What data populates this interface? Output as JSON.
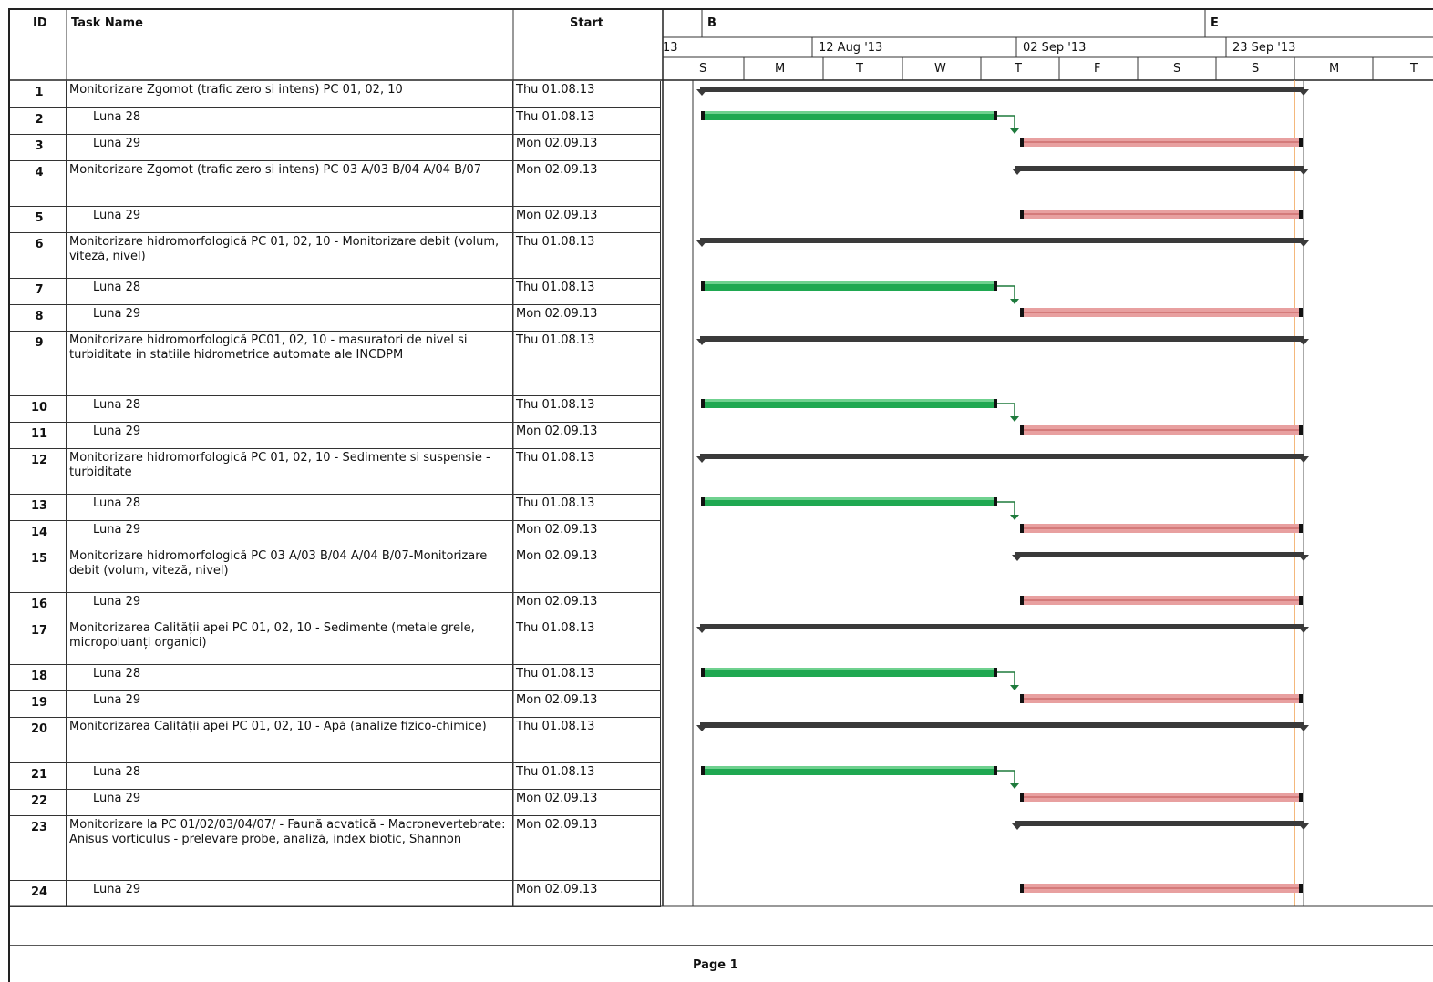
{
  "columns": {
    "id": "ID",
    "name": "Task Name",
    "start": "Start"
  },
  "timescale": {
    "top_markers": [
      "B",
      "E"
    ],
    "mid_labels": [
      "13",
      "12 Aug '13",
      "02 Sep '13",
      "23 Sep '13"
    ],
    "day_labels": [
      "S",
      "M",
      "T",
      "W",
      "T",
      "F",
      "S",
      "S",
      "M",
      "T"
    ]
  },
  "tasks": [
    {
      "id": "1",
      "name": "Monitorizare Zgomot (trafic zero si intens) PC 01, 02, 10",
      "start": "Thu 01.08.13",
      "kind": "summary",
      "lines": 1
    },
    {
      "id": "2",
      "name": "Luna 28",
      "start": "Thu 01.08.13",
      "kind": "green",
      "lines": 1
    },
    {
      "id": "3",
      "name": "Luna 29",
      "start": "Mon 02.09.13",
      "kind": "red",
      "lines": 1
    },
    {
      "id": "4",
      "name": "Monitorizare Zgomot (trafic zero si intens) PC 03 A/03 B/04 A/04 B/07",
      "start": "Mon 02.09.13",
      "kind": "summary2",
      "lines": 2
    },
    {
      "id": "5",
      "name": "Luna 29",
      "start": "Mon 02.09.13",
      "kind": "red",
      "lines": 1
    },
    {
      "id": "6",
      "name": "Monitorizare hidromorfologică PC 01, 02, 10 - Monitorizare debit (volum, viteză, nivel)",
      "start": "Thu 01.08.13",
      "kind": "summary",
      "lines": 2
    },
    {
      "id": "7",
      "name": "Luna 28",
      "start": "Thu 01.08.13",
      "kind": "green",
      "lines": 1
    },
    {
      "id": "8",
      "name": "Luna 29",
      "start": "Mon 02.09.13",
      "kind": "red",
      "lines": 1
    },
    {
      "id": "9",
      "name": "Monitorizare hidromorfologică PC01, 02, 10 - masuratori de nivel si turbiditate in statiile hidrometrice automate ale INCDPM",
      "start": "Thu 01.08.13",
      "kind": "summary",
      "lines": 3
    },
    {
      "id": "10",
      "name": "Luna 28",
      "start": "Thu 01.08.13",
      "kind": "green",
      "lines": 1
    },
    {
      "id": "11",
      "name": "Luna 29",
      "start": "Mon 02.09.13",
      "kind": "red",
      "lines": 1
    },
    {
      "id": "12",
      "name": "Monitorizare hidromorfologică PC 01, 02, 10 - Sedimente si suspensie - turbiditate",
      "start": "Thu 01.08.13",
      "kind": "summary",
      "lines": 2
    },
    {
      "id": "13",
      "name": "Luna 28",
      "start": "Thu 01.08.13",
      "kind": "green",
      "lines": 1
    },
    {
      "id": "14",
      "name": "Luna 29",
      "start": "Mon 02.09.13",
      "kind": "red",
      "lines": 1
    },
    {
      "id": "15",
      "name": "Monitorizare hidromorfologică PC 03 A/03 B/04 A/04 B/07-Monitorizare debit (volum, viteză, nivel)",
      "start": "Mon 02.09.13",
      "kind": "summary2",
      "lines": 2
    },
    {
      "id": "16",
      "name": "Luna 29",
      "start": "Mon 02.09.13",
      "kind": "red",
      "lines": 1
    },
    {
      "id": "17",
      "name": "Monitorizarea Calității apei PC 01, 02, 10 - Sedimente (metale grele, micropoluanți organici)",
      "start": "Thu 01.08.13",
      "kind": "summary",
      "lines": 2
    },
    {
      "id": "18",
      "name": "Luna 28",
      "start": "Thu 01.08.13",
      "kind": "green",
      "lines": 1
    },
    {
      "id": "19",
      "name": "Luna 29",
      "start": "Mon 02.09.13",
      "kind": "red",
      "lines": 1
    },
    {
      "id": "20",
      "name": "Monitorizarea Calității apei PC 01, 02,  10 - Apă (analize fizico-chimice)",
      "start": "Thu 01.08.13",
      "kind": "summary",
      "lines": 2
    },
    {
      "id": "21",
      "name": "Luna 28",
      "start": "Thu 01.08.13",
      "kind": "green",
      "lines": 1
    },
    {
      "id": "22",
      "name": "Luna 29",
      "start": "Mon 02.09.13",
      "kind": "red",
      "lines": 1
    },
    {
      "id": "23",
      "name": "Monitorizare la PC 01/02/03/04/07/ - Faună acvatică - Macronevertebrate: Anisus vorticulus - prelevare probe, analiză, index biotic, Shannon",
      "start": "Mon 02.09.13",
      "kind": "summary2",
      "lines": 3
    },
    {
      "id": "24",
      "name": "Luna 29",
      "start": "Mon 02.09.13",
      "kind": "red",
      "lines": 1
    }
  ],
  "footer": {
    "page_label": "Page 1"
  },
  "colors": {
    "summary": "#3a3a3a",
    "green": "#1fa851",
    "red": "#e8a0a0",
    "today_line": "#f0a050"
  }
}
